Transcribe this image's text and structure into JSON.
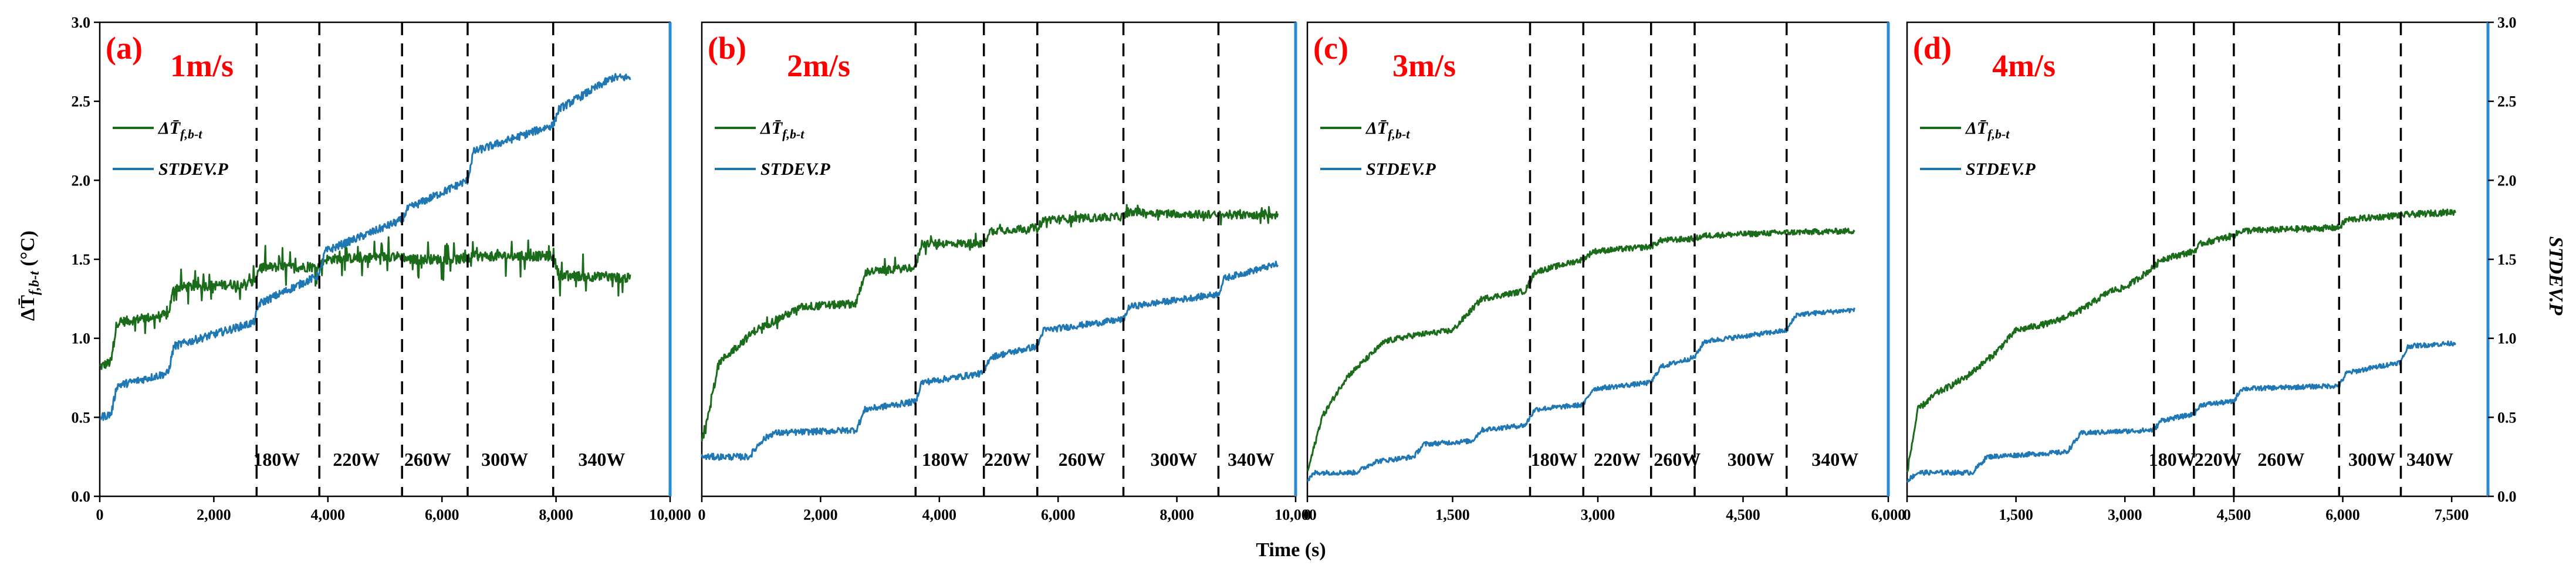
{
  "figure": {
    "xlabel": "Time (s)",
    "ylabel_left": "ΔT̄",
    "ylabel_left_sub": "f,b-t",
    "ylabel_left_unit": " (°C)",
    "ylabel_right": "STDEV.P",
    "colors": {
      "temp_series": "#1a6b1a",
      "stdev_series": "#1f78b4",
      "label_red": "#ff0000",
      "right_axis": "#2b8cd6"
    }
  },
  "chart_data": [
    {
      "type": "line",
      "panel": "(a)",
      "speed": "1m/s",
      "xlim": [
        0,
        10000
      ],
      "x_ticks": [
        0,
        2000,
        4000,
        6000,
        8000,
        10000
      ],
      "x_tick_labels": [
        "0",
        "2,000",
        "4,000",
        "6,000",
        "8,000",
        "10,000"
      ],
      "ylim": [
        0,
        3
      ],
      "y_ticks": [
        0,
        0.5,
        1.0,
        1.5,
        2.0,
        2.5,
        3.0
      ],
      "y_tick_labels": [
        "0.0",
        "0.5",
        "1.0",
        "1.5",
        "2.0",
        "2.5",
        "3.0"
      ],
      "legend": [
        {
          "name": "ΔT̄",
          "sub": "f,b-t"
        },
        {
          "name": "STDEV.P",
          "sub": ""
        }
      ],
      "dividers": [
        2750,
        3850,
        5300,
        6450,
        7950
      ],
      "power_labels": [
        {
          "text": "180W",
          "x": 3100
        },
        {
          "text": "220W",
          "x": 4500
        },
        {
          "text": "260W",
          "x": 5750
        },
        {
          "text": "300W",
          "x": 7100
        },
        {
          "text": "340W",
          "x": 8800
        }
      ],
      "x_end": 9300,
      "series": [
        {
          "name": "ΔT̄ f,b-t",
          "noise": 0.03,
          "spikes": 0.12,
          "x": [
            0,
            200,
            300,
            1200,
            1300,
            2700,
            2800,
            3850,
            3950,
            5300,
            5400,
            6450,
            6550,
            7950,
            8050,
            9300
          ],
          "y": [
            0.82,
            0.85,
            1.1,
            1.15,
            1.32,
            1.35,
            1.45,
            1.45,
            1.5,
            1.52,
            1.5,
            1.5,
            1.52,
            1.52,
            1.4,
            1.38
          ]
        },
        {
          "name": "STDEV.P",
          "noise": 0.025,
          "spikes": 0,
          "x": [
            0,
            200,
            300,
            1200,
            1300,
            2700,
            2800,
            3850,
            3950,
            5300,
            5400,
            6450,
            6550,
            7950,
            8050,
            9000,
            9300
          ],
          "y": [
            0.5,
            0.52,
            0.7,
            0.78,
            0.95,
            1.1,
            1.22,
            1.4,
            1.55,
            1.75,
            1.82,
            2.0,
            2.18,
            2.35,
            2.45,
            2.65,
            2.65
          ]
        }
      ]
    },
    {
      "type": "line",
      "panel": "(b)",
      "speed": "2m/s",
      "xlim": [
        0,
        10000
      ],
      "x_ticks": [
        0,
        2000,
        4000,
        6000,
        8000,
        10000
      ],
      "x_tick_labels": [
        "0",
        "2,000",
        "4,000",
        "6,000",
        "8,000",
        "10,000"
      ],
      "ylim": [
        0,
        3
      ],
      "legend": [
        {
          "name": "ΔT̄",
          "sub": "f,b-t"
        },
        {
          "name": "STDEV.P",
          "sub": ""
        }
      ],
      "dividers": [
        3600,
        4750,
        5650,
        7100,
        8700
      ],
      "power_labels": [
        {
          "text": "180W",
          "x": 4100
        },
        {
          "text": "220W",
          "x": 5150
        },
        {
          "text": "260W",
          "x": 6400
        },
        {
          "text": "300W",
          "x": 7950
        },
        {
          "text": "340W",
          "x": 9250
        }
      ],
      "x_end": 9700,
      "series": [
        {
          "name": "ΔT̄ f,b-t",
          "noise": 0.025,
          "spikes": 0.05,
          "x": [
            0,
            300,
            900,
            1700,
            2600,
            2750,
            3600,
            3700,
            4750,
            4850,
            5650,
            5750,
            7100,
            7200,
            8700,
            9700
          ],
          "y": [
            0.35,
            0.85,
            1.05,
            1.2,
            1.22,
            1.42,
            1.45,
            1.6,
            1.6,
            1.68,
            1.7,
            1.75,
            1.77,
            1.8,
            1.78,
            1.78
          ]
        },
        {
          "name": "STDEV.P",
          "noise": 0.02,
          "spikes": 0,
          "x": [
            0,
            800,
            1000,
            1200,
            2600,
            2750,
            3600,
            3700,
            4750,
            4850,
            5650,
            5750,
            7100,
            7200,
            8700,
            8800,
            9700
          ],
          "y": [
            0.25,
            0.25,
            0.35,
            0.4,
            0.42,
            0.55,
            0.6,
            0.72,
            0.78,
            0.88,
            0.95,
            1.05,
            1.12,
            1.2,
            1.28,
            1.38,
            1.47
          ]
        }
      ]
    },
    {
      "type": "line",
      "panel": "(c)",
      "speed": "3m/s",
      "xlim": [
        0,
        6000
      ],
      "x_ticks": [
        0,
        1500,
        3000,
        4500,
        6000
      ],
      "x_tick_labels": [
        "0",
        "1,500",
        "3,000",
        "4,500",
        "6,000"
      ],
      "ylim": [
        0,
        3
      ],
      "legend": [
        {
          "name": "ΔT̄",
          "sub": "f,b-t"
        },
        {
          "name": "STDEV.P",
          "sub": ""
        }
      ],
      "dividers": [
        2300,
        2850,
        3550,
        4000,
        4950
      ],
      "power_labels": [
        {
          "text": "180W",
          "x": 2550
        },
        {
          "text": "220W",
          "x": 3200
        },
        {
          "text": "260W",
          "x": 3820
        },
        {
          "text": "300W",
          "x": 4580
        },
        {
          "text": "340W",
          "x": 5450
        }
      ],
      "x_end": 5650,
      "series": [
        {
          "name": "ΔT̄ f,b-t",
          "noise": 0.018,
          "spikes": 0,
          "x": [
            0,
            150,
            400,
            800,
            1100,
            1500,
            1800,
            2250,
            2350,
            2850,
            2950,
            3550,
            3650,
            4000,
            4100,
            4950,
            5650
          ],
          "y": [
            0.15,
            0.5,
            0.75,
            0.98,
            1.02,
            1.05,
            1.25,
            1.3,
            1.42,
            1.5,
            1.55,
            1.58,
            1.62,
            1.63,
            1.65,
            1.67,
            1.68
          ]
        },
        {
          "name": "STDEV.P",
          "noise": 0.015,
          "spikes": 0,
          "x": [
            0,
            80,
            500,
            700,
            1100,
            1200,
            1700,
            1800,
            2250,
            2350,
            2850,
            2950,
            3550,
            3650,
            4000,
            4100,
            4950,
            5050,
            5650
          ],
          "y": [
            0.1,
            0.15,
            0.15,
            0.22,
            0.25,
            0.33,
            0.35,
            0.42,
            0.45,
            0.55,
            0.58,
            0.68,
            0.72,
            0.82,
            0.88,
            0.98,
            1.05,
            1.15,
            1.18
          ]
        }
      ]
    },
    {
      "type": "line",
      "panel": "(d)",
      "speed": "4m/s",
      "xlim": [
        0,
        8000
      ],
      "x_ticks": [
        0,
        1500,
        3000,
        4500,
        6000,
        7500
      ],
      "x_tick_labels": [
        "0",
        "1,500",
        "3,000",
        "4,500",
        "6,000",
        "7,500"
      ],
      "ylim": [
        0,
        3
      ],
      "y_ticks": [
        0,
        0.5,
        1.0,
        1.5,
        2.0,
        2.5,
        3.0
      ],
      "y_tick_labels": [
        "0.0",
        "0.5",
        "1.0",
        "1.5",
        "2.0",
        "2.5",
        "3.0"
      ],
      "legend": [
        {
          "name": "ΔT̄",
          "sub": "f,b-t"
        },
        {
          "name": "STDEV.P",
          "sub": ""
        }
      ],
      "dividers": [
        3400,
        3950,
        4500,
        5950,
        6800
      ],
      "power_labels": [
        {
          "text": "180W",
          "x": 3650
        },
        {
          "text": "220W",
          "x": 4280
        },
        {
          "text": "260W",
          "x": 5150
        },
        {
          "text": "300W",
          "x": 6400
        },
        {
          "text": "340W",
          "x": 7200
        }
      ],
      "x_end": 7550,
      "series": [
        {
          "name": "ΔT̄ f,b-t",
          "noise": 0.02,
          "spikes": 0,
          "x": [
            0,
            150,
            400,
            800,
            1200,
            1500,
            2000,
            2400,
            2800,
            3000,
            3400,
            3500,
            3950,
            4050,
            4500,
            4600,
            5950,
            6050,
            6800,
            7550
          ],
          "y": [
            0.15,
            0.55,
            0.65,
            0.75,
            0.9,
            1.05,
            1.1,
            1.18,
            1.3,
            1.32,
            1.45,
            1.5,
            1.55,
            1.6,
            1.65,
            1.68,
            1.7,
            1.75,
            1.78,
            1.8
          ]
        },
        {
          "name": "STDEV.P",
          "noise": 0.015,
          "spikes": 0,
          "x": [
            0,
            150,
            900,
            1100,
            2200,
            2400,
            3400,
            3500,
            3950,
            4050,
            4500,
            4600,
            5950,
            6050,
            6800,
            6900,
            7550
          ],
          "y": [
            0.1,
            0.15,
            0.15,
            0.25,
            0.28,
            0.4,
            0.42,
            0.48,
            0.52,
            0.58,
            0.6,
            0.68,
            0.7,
            0.78,
            0.85,
            0.95,
            0.97
          ]
        }
      ]
    }
  ]
}
